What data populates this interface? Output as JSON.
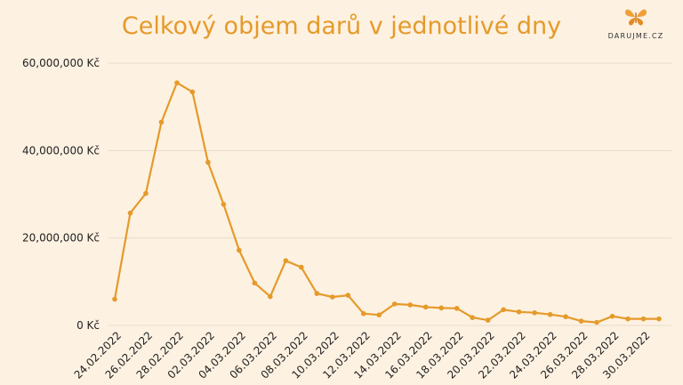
{
  "header": {
    "title": "Celkový objem darů v jednotlivé dny",
    "logo_text": "DARUJME.CZ",
    "logo_icon": "butterfly-icon"
  },
  "colors": {
    "background": "#fdf1e1",
    "line": "#e59a2a",
    "title": "#e59a2a",
    "grid": "#e6dccd"
  },
  "chart_data": {
    "type": "line",
    "title": "Celkový objem darů v jednotlivé dny",
    "xlabel": "",
    "ylabel": "",
    "ylim": [
      0,
      60000000
    ],
    "yticks": [
      {
        "value": 0,
        "label": "0 Kč"
      },
      {
        "value": 20000000,
        "label": "20,000,000 Kč"
      },
      {
        "value": 40000000,
        "label": "40,000,000 Kč"
      },
      {
        "value": 60000000,
        "label": "60,000,000 Kč"
      }
    ],
    "grid": true,
    "x": [
      "24.02.2022",
      "25.02.2022",
      "26.02.2022",
      "27.02.2022",
      "28.02.2022",
      "01.03.2022",
      "02.03.2022",
      "03.03.2022",
      "04.03.2022",
      "05.03.2022",
      "06.03.2022",
      "07.03.2022",
      "08.03.2022",
      "09.03.2022",
      "10.03.2022",
      "11.03.2022",
      "12.03.2022",
      "13.03.2022",
      "14.03.2022",
      "15.03.2022",
      "16.03.2022",
      "17.03.2022",
      "18.03.2022",
      "19.03.2022",
      "20.03.2022",
      "21.03.2022",
      "22.03.2022",
      "23.03.2022",
      "24.03.2022",
      "25.03.2022",
      "26.03.2022",
      "27.03.2022",
      "28.03.2022",
      "29.03.2022",
      "30.03.2022",
      "31.03.2022"
    ],
    "xtick_labels": [
      "24.02.2022",
      "26.02.2022",
      "28.02.2022",
      "02.03.2022",
      "04.03.2022",
      "06.03.2022",
      "08.03.2022",
      "10.03.2022",
      "12.03.2022",
      "14.03.2022",
      "16.03.2022",
      "18.03.2022",
      "20.03.2022",
      "22.03.2022",
      "24.03.2022",
      "26.03.2022",
      "28.03.2022",
      "30.03.2022"
    ],
    "series": [
      {
        "values": [
          6000000,
          25700000,
          30200000,
          46500000,
          55500000,
          53400000,
          37300000,
          27700000,
          17200000,
          9700000,
          6600000,
          14800000,
          13300000,
          7300000,
          6500000,
          6900000,
          2700000,
          2400000,
          4900000,
          4700000,
          4200000,
          4000000,
          3900000,
          1800000,
          1200000,
          3600000,
          3100000,
          2900000,
          2500000,
          2000000,
          1000000,
          700000,
          2100000,
          1500000,
          1500000,
          1500000
        ]
      }
    ]
  }
}
